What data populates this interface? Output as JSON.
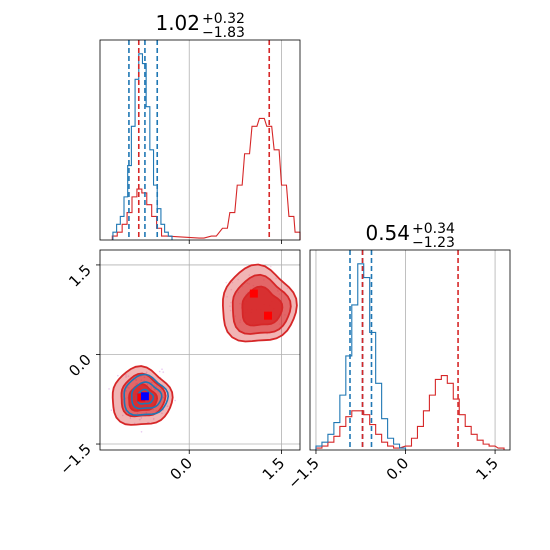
{
  "chart_data": {
    "type": "corner",
    "titles": [
      {
        "text": "1.02",
        "upper": "+0.32",
        "lower": "−1.83"
      },
      {
        "text": "0.54",
        "upper": "+0.34",
        "lower": "−1.23"
      }
    ],
    "ticks": {
      "x_bottom_left": [
        "0.0",
        "1.5"
      ],
      "y_left": [
        "1.5",
        "0.0",
        "−1.5"
      ],
      "x_bottom_right": [
        "−1.5",
        "0.0",
        "1.5"
      ]
    },
    "tick_values": {
      "x_bottom_left": [
        0.0,
        1.5
      ],
      "y_left": [
        1.5,
        0.0,
        -1.5
      ],
      "x_bottom_right": [
        -1.5,
        0.0,
        1.5
      ]
    },
    "axis_ranges": {
      "param1": [
        -1.45,
        1.8
      ],
      "param2": [
        -1.6,
        1.75
      ]
    },
    "grid": true,
    "series_colors": {
      "blue": "#1f77b4",
      "red": "#d62728"
    },
    "quantiles": {
      "param1": {
        "blue": [
          -0.98,
          -0.72,
          -0.52
        ],
        "red": [
          -0.82,
          1.3
        ]
      },
      "param2": {
        "blue": [
          -0.93,
          -0.72,
          -0.57
        ],
        "red": [
          -0.72,
          0.88
        ]
      }
    },
    "hist_param1": {
      "blue": {
        "centers": [
          -1.21,
          -1.15,
          -1.09,
          -1.03,
          -0.97,
          -0.91,
          -0.85,
          -0.79,
          -0.73,
          -0.67,
          -0.61,
          -0.55,
          -0.49,
          -0.43,
          -0.37,
          -0.31
        ],
        "counts": [
          0.04,
          0.08,
          0.12,
          0.22,
          0.38,
          0.58,
          0.82,
          0.95,
          0.9,
          0.68,
          0.46,
          0.28,
          0.16,
          0.08,
          0.04,
          0.02
        ]
      },
      "red": {
        "centers": [
          -1.21,
          -1.13,
          -1.05,
          -0.97,
          -0.89,
          -0.81,
          -0.73,
          -0.65,
          -0.57,
          -0.49,
          -0.41,
          0.2,
          0.4,
          0.58,
          0.7,
          0.82,
          0.94,
          1.06,
          1.18,
          1.3,
          1.42,
          1.54,
          1.66,
          1.76
        ],
        "counts": [
          0.02,
          0.04,
          0.08,
          0.14,
          0.22,
          0.26,
          0.24,
          0.18,
          0.12,
          0.06,
          0.02,
          0.01,
          0.02,
          0.06,
          0.14,
          0.28,
          0.44,
          0.58,
          0.62,
          0.58,
          0.46,
          0.28,
          0.12,
          0.04
        ]
      }
    },
    "hist_param2": {
      "blue": {
        "centers": [
          -1.45,
          -1.35,
          -1.25,
          -1.15,
          -1.05,
          -0.95,
          -0.85,
          -0.75,
          -0.65,
          -0.55,
          -0.45,
          -0.35,
          -0.25,
          -0.15,
          -0.05
        ],
        "counts": [
          0.02,
          0.04,
          0.08,
          0.14,
          0.28,
          0.48,
          0.74,
          0.95,
          0.88,
          0.6,
          0.34,
          0.16,
          0.06,
          0.03,
          0.01
        ]
      },
      "red": {
        "centers": [
          -1.45,
          -1.35,
          -1.25,
          -1.15,
          -1.05,
          -0.95,
          -0.85,
          -0.75,
          -0.65,
          -0.55,
          -0.45,
          -0.35,
          -0.25,
          -0.15,
          0.05,
          0.15,
          0.25,
          0.35,
          0.45,
          0.55,
          0.65,
          0.75,
          0.85,
          0.95,
          1.05,
          1.15,
          1.25,
          1.35,
          1.45,
          1.6
        ],
        "counts": [
          0.01,
          0.02,
          0.04,
          0.07,
          0.12,
          0.17,
          0.2,
          0.2,
          0.18,
          0.13,
          0.08,
          0.04,
          0.02,
          0.01,
          0.02,
          0.06,
          0.12,
          0.2,
          0.28,
          0.36,
          0.38,
          0.34,
          0.26,
          0.18,
          0.12,
          0.08,
          0.05,
          0.03,
          0.02,
          0.01
        ]
      }
    },
    "scatter_2d": {
      "blue_center": [
        -0.72,
        -0.7
      ],
      "red_centers": [
        [
          -0.78,
          -0.72
        ],
        [
          1.05,
          1.02
        ],
        [
          1.28,
          0.65
        ]
      ]
    }
  }
}
